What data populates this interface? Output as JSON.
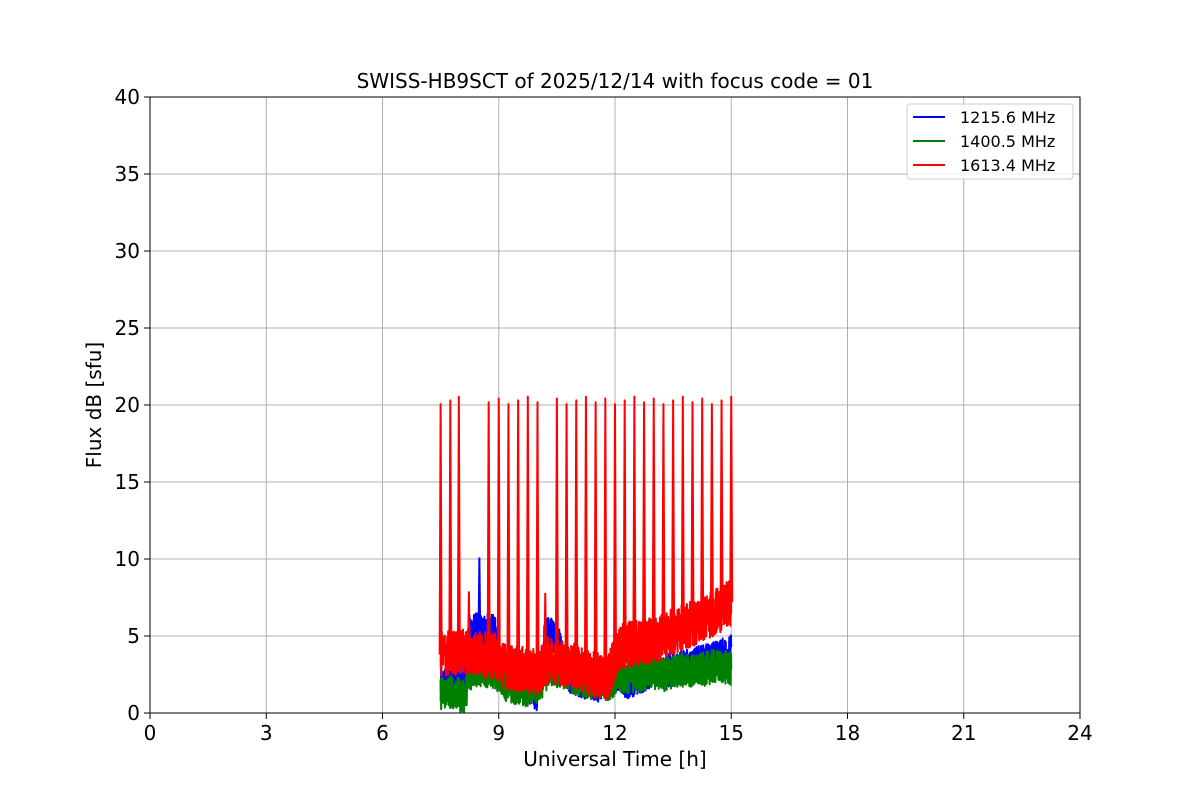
{
  "chart_data": {
    "type": "line",
    "title": "SWISS-HB9SCT of 2025/12/14 with focus code = 01",
    "xlabel": "Universal Time [h]",
    "ylabel": "Flux dB [sfu]",
    "xlim": [
      0,
      24
    ],
    "ylim": [
      0,
      40
    ],
    "xticks": [
      0,
      3,
      6,
      9,
      12,
      15,
      18,
      21,
      24
    ],
    "yticks": [
      0,
      5,
      10,
      15,
      20,
      25,
      30,
      35,
      40
    ],
    "grid": true,
    "legend_position": "top-right",
    "data_range_x": [
      7.5,
      15.0
    ],
    "spike_times_h": [
      7.5,
      7.75,
      7.97,
      8.74,
      9.0,
      9.25,
      9.5,
      9.75,
      10.0,
      10.5,
      10.75,
      11.0,
      11.25,
      11.5,
      11.75,
      12.0,
      12.25,
      12.5,
      12.75,
      13.0,
      13.25,
      13.5,
      13.75,
      14.0,
      14.25,
      14.5,
      14.75,
      15.0
    ],
    "spike_peak_db": 20.3,
    "series": [
      {
        "name": "1215.6 MHz",
        "color": "#0000ff",
        "x": [
          7.5,
          7.8,
          8.1,
          8.25,
          8.5,
          8.9,
          9.0,
          9.3,
          9.7,
          10.0,
          10.2,
          10.5,
          10.8,
          11.2,
          11.6,
          12.0,
          12.3,
          12.7,
          13.0,
          13.3,
          13.7,
          14.0,
          14.3,
          14.6,
          15.0
        ],
        "values": [
          1.8,
          2.0,
          2.2,
          5.4,
          5.4,
          5.3,
          2.6,
          2.5,
          1.9,
          1.2,
          5.2,
          5.0,
          2.4,
          2.0,
          1.8,
          2.6,
          2.0,
          2.4,
          2.8,
          2.7,
          3.0,
          3.1,
          3.4,
          3.6,
          4.0
        ],
        "sparse_peaks": [
          {
            "x": 8.5,
            "y": 10.1
          }
        ]
      },
      {
        "name": "1400.5 MHz",
        "color": "#008000",
        "x": [
          7.5,
          7.8,
          8.1,
          8.3,
          8.6,
          8.9,
          9.2,
          9.6,
          10.0,
          10.3,
          10.7,
          11.0,
          11.4,
          11.8,
          12.1,
          12.5,
          12.9,
          13.3,
          13.7,
          14.1,
          14.5,
          14.8,
          15.0
        ],
        "values": [
          1.3,
          1.4,
          1.0,
          2.7,
          2.8,
          2.7,
          1.8,
          1.5,
          1.6,
          2.8,
          2.6,
          2.2,
          2.0,
          1.9,
          2.3,
          2.4,
          2.6,
          2.5,
          2.8,
          2.7,
          3.0,
          3.0,
          2.8
        ],
        "sparse_peaks": []
      },
      {
        "name": "1613.4 MHz",
        "color": "#ff0000",
        "x": [
          7.5,
          7.8,
          8.1,
          8.3,
          8.6,
          8.9,
          9.2,
          9.6,
          10.0,
          10.3,
          10.7,
          11.0,
          11.4,
          11.8,
          12.1,
          12.4,
          12.8,
          13.1,
          13.5,
          13.8,
          14.1,
          14.4,
          14.7,
          15.0
        ],
        "values": [
          3.8,
          3.9,
          4.0,
          3.9,
          3.8,
          3.7,
          3.0,
          2.8,
          2.6,
          3.5,
          3.2,
          3.0,
          2.5,
          2.3,
          4.2,
          4.5,
          4.6,
          4.8,
          5.3,
          5.6,
          5.9,
          6.3,
          6.7,
          7.2
        ],
        "sparse_peaks": [
          {
            "x": 8.23,
            "y": 7.9
          },
          {
            "x": 10.2,
            "y": 7.8
          }
        ]
      }
    ]
  }
}
